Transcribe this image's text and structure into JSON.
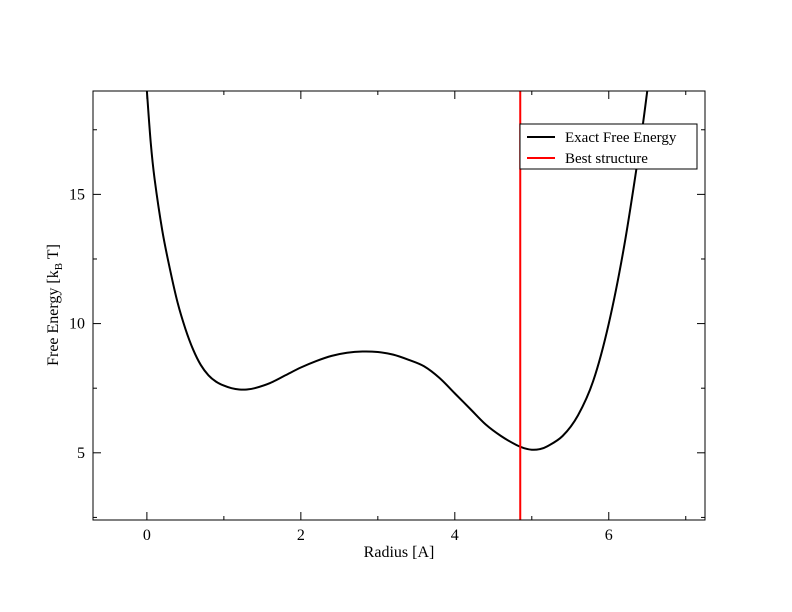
{
  "chart_data": {
    "type": "line",
    "title": "",
    "xlabel": "Radius [A]",
    "ylabel": {
      "main": "Free Energy [k",
      "sub1": "B",
      "mid": " T]"
    },
    "xlim": [
      -0.7,
      7.25
    ],
    "ylim": [
      2.4,
      19.0
    ],
    "xticks": [
      0,
      2,
      4,
      6
    ],
    "yticks": [
      5,
      10,
      15
    ],
    "grid": false,
    "legend_position": "top-right",
    "series": [
      {
        "name": "Exact Free Energy",
        "color": "#000000",
        "kind": "curve",
        "x": [
          0.0,
          0.05,
          0.1,
          0.2,
          0.3,
          0.4,
          0.5,
          0.6,
          0.7,
          0.8,
          0.9,
          1.0,
          1.1,
          1.2,
          1.3,
          1.4,
          1.6,
          1.8,
          2.0,
          2.2,
          2.4,
          2.6,
          2.8,
          3.0,
          3.2,
          3.4,
          3.6,
          3.8,
          4.0,
          4.2,
          4.4,
          4.6,
          4.8,
          4.9,
          5.0,
          5.1,
          5.2,
          5.4,
          5.6,
          5.8,
          6.0,
          6.2,
          6.4,
          6.5
        ],
        "y": [
          19.0,
          17.0,
          15.6,
          13.6,
          12.1,
          10.8,
          9.8,
          9.0,
          8.4,
          8.0,
          7.75,
          7.6,
          7.5,
          7.45,
          7.45,
          7.5,
          7.7,
          8.0,
          8.3,
          8.55,
          8.75,
          8.87,
          8.92,
          8.9,
          8.8,
          8.6,
          8.35,
          7.9,
          7.3,
          6.7,
          6.1,
          5.65,
          5.3,
          5.18,
          5.12,
          5.14,
          5.25,
          5.65,
          6.45,
          7.8,
          10.0,
          13.0,
          16.8,
          19.0
        ]
      },
      {
        "name": "Best structure",
        "color": "#ff0000",
        "kind": "vertical-line",
        "x": 4.85
      }
    ]
  }
}
